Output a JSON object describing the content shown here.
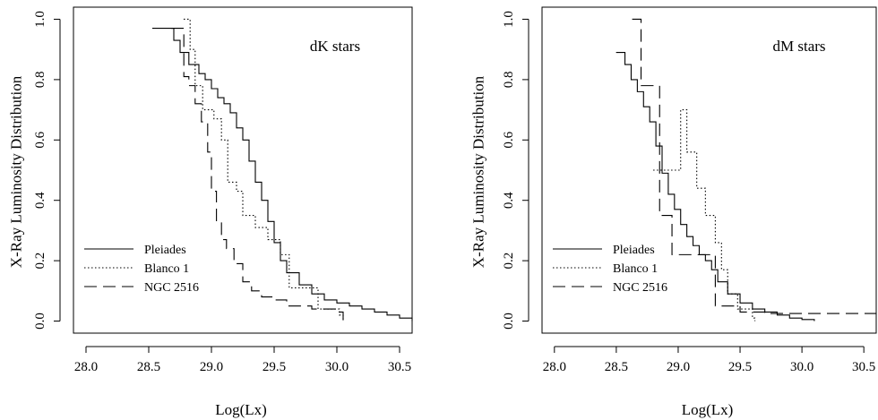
{
  "chart_data": [
    {
      "type": "line",
      "annotation": "dK stars",
      "xlabel": "Log(Lx)",
      "ylabel": "X-Ray Luminosity Distribution",
      "xlim": [
        27.9,
        30.6
      ],
      "ylim": [
        -0.04,
        1.04
      ],
      "xticks": [
        "28.0",
        "28.5",
        "29.0",
        "29.5",
        "30.0",
        "30.5"
      ],
      "yticks": [
        "0.0",
        "0.2",
        "0.4",
        "0.6",
        "0.8",
        "1.0"
      ],
      "legend": {
        "position": "bottom-left",
        "entries": [
          "Pleiades",
          "Blanco 1",
          "NGC 2516"
        ]
      },
      "series": [
        {
          "name": "Pleiades",
          "dash": "solid",
          "x": [
            28.55,
            28.7,
            28.75,
            28.82,
            28.9,
            28.95,
            29.0,
            29.05,
            29.1,
            29.15,
            29.2,
            29.25,
            29.3,
            29.35,
            29.4,
            29.45,
            29.5,
            29.55,
            29.6,
            29.7,
            29.8,
            29.9,
            30.0,
            30.1,
            30.2,
            30.3,
            30.4,
            30.5,
            30.6
          ],
          "y": [
            0.97,
            0.93,
            0.89,
            0.85,
            0.82,
            0.8,
            0.77,
            0.74,
            0.72,
            0.69,
            0.64,
            0.6,
            0.53,
            0.46,
            0.4,
            0.33,
            0.26,
            0.2,
            0.16,
            0.12,
            0.09,
            0.07,
            0.06,
            0.05,
            0.04,
            0.03,
            0.02,
            0.01,
            0.0
          ]
        },
        {
          "name": "Blanco 1",
          "dash": "dotted",
          "x": [
            28.8,
            28.83,
            28.87,
            28.93,
            29.02,
            29.08,
            29.13,
            29.2,
            29.25,
            29.35,
            29.45,
            29.55,
            29.62,
            29.7,
            29.85,
            29.95,
            30.02,
            30.05
          ],
          "y": [
            1.0,
            0.9,
            0.78,
            0.7,
            0.67,
            0.6,
            0.46,
            0.43,
            0.35,
            0.31,
            0.27,
            0.22,
            0.11,
            0.11,
            0.04,
            0.04,
            0.02,
            0.0
          ]
        },
        {
          "name": "NGC 2516",
          "dash": "dashed",
          "x": [
            28.7,
            28.78,
            28.82,
            28.87,
            28.92,
            28.97,
            29.0,
            29.04,
            29.08,
            29.12,
            29.18,
            29.25,
            29.32,
            29.4,
            29.5,
            29.6,
            29.8,
            30.0,
            30.05
          ],
          "y": [
            0.97,
            0.81,
            0.78,
            0.72,
            0.66,
            0.56,
            0.43,
            0.33,
            0.27,
            0.24,
            0.19,
            0.13,
            0.1,
            0.08,
            0.07,
            0.05,
            0.04,
            0.03,
            0.0
          ]
        }
      ]
    },
    {
      "type": "line",
      "annotation": "dM stars",
      "xlabel": "Log(Lx)",
      "ylabel": "X-Ray Luminosity Distribution",
      "xlim": [
        27.9,
        30.6
      ],
      "ylim": [
        -0.04,
        1.04
      ],
      "xticks": [
        "28.0",
        "28.5",
        "29.0",
        "29.5",
        "30.0",
        "30.5"
      ],
      "yticks": [
        "0.0",
        "0.2",
        "0.4",
        "0.6",
        "0.8",
        "1.0"
      ],
      "legend": {
        "position": "bottom-left",
        "entries": [
          "Pleiades",
          "Blanco 1",
          "NGC 2516"
        ]
      },
      "series": [
        {
          "name": "Pleiades",
          "dash": "solid",
          "x": [
            28.52,
            28.57,
            28.62,
            28.67,
            28.72,
            28.77,
            28.82,
            28.87,
            28.92,
            28.97,
            29.02,
            29.07,
            29.12,
            29.17,
            29.22,
            29.27,
            29.32,
            29.4,
            29.5,
            29.6,
            29.7,
            29.8,
            29.9,
            30.0,
            30.1
          ],
          "y": [
            0.89,
            0.85,
            0.8,
            0.76,
            0.71,
            0.66,
            0.58,
            0.49,
            0.42,
            0.37,
            0.32,
            0.28,
            0.25,
            0.22,
            0.2,
            0.17,
            0.13,
            0.09,
            0.06,
            0.04,
            0.03,
            0.02,
            0.01,
            0.005,
            0.0
          ]
        },
        {
          "name": "Blanco 1",
          "dash": "dotted",
          "x": [
            28.82,
            28.97,
            29.02,
            29.07,
            29.15,
            29.22,
            29.3,
            29.35,
            29.4,
            29.48,
            29.6,
            29.62
          ],
          "y": [
            0.5,
            0.5,
            0.7,
            0.56,
            0.44,
            0.35,
            0.26,
            0.17,
            0.09,
            0.04,
            0.01,
            0.0
          ]
        },
        {
          "name": "NGC 2516",
          "dash": "dashed",
          "x": [
            28.65,
            28.7,
            28.85,
            28.95,
            29.0,
            29.1,
            29.3,
            29.5,
            29.7,
            30.6
          ],
          "y": [
            1.0,
            0.78,
            0.35,
            0.22,
            0.22,
            0.22,
            0.05,
            0.03,
            0.025,
            0.025
          ]
        }
      ]
    }
  ]
}
